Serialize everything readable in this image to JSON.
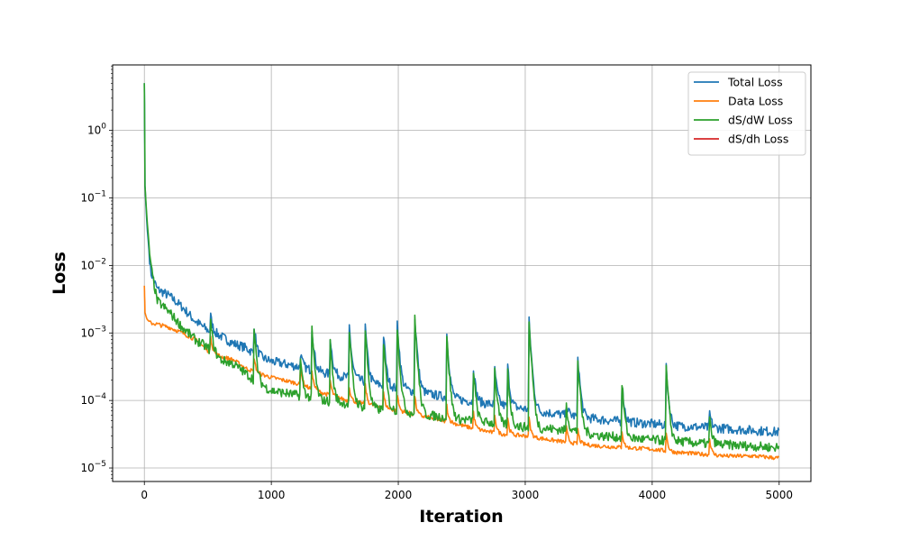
{
  "chart_data": {
    "type": "line",
    "title": "",
    "xlabel": "Iteration",
    "ylabel": "Loss",
    "xlim": [
      -250,
      5250
    ],
    "ylim_log10": [
      -5.2,
      0.97
    ],
    "yscale": "log",
    "grid": true,
    "legend_position": "top-right",
    "xticks": [
      0,
      1000,
      2000,
      3000,
      4000,
      5000
    ],
    "xtick_labels": [
      "0",
      "1000",
      "2000",
      "3000",
      "4000",
      "5000"
    ],
    "yticks_exponent": [
      0,
      -1,
      -2,
      -3,
      -4,
      -5
    ],
    "series": [
      {
        "name": "Total Loss",
        "color": "#1f77b4",
        "x": [
          0,
          5,
          20,
          50,
          100,
          200,
          300,
          400,
          500,
          600,
          700,
          800,
          900,
          1000,
          1200,
          1400,
          1600,
          1800,
          2000,
          2200,
          2400,
          2600,
          2800,
          3000,
          3200,
          3400,
          3600,
          3800,
          4000,
          4200,
          4400,
          4600,
          4800,
          5000
        ],
        "y": [
          5.0,
          0.15,
          0.04,
          0.008,
          0.0045,
          0.0035,
          0.0024,
          0.0015,
          0.0011,
          0.0009,
          0.0007,
          0.0006,
          0.00045,
          0.00038,
          0.00032,
          0.00026,
          0.00022,
          0.00018,
          0.00015,
          0.00013,
          0.00011,
          9.5e-05,
          8.5e-05,
          7.5e-05,
          6.5e-05,
          5.8e-05,
          5.2e-05,
          4.8e-05,
          4.5e-05,
          4.2e-05,
          4e-05,
          3.8e-05,
          3.6e-05,
          3.4e-05
        ]
      },
      {
        "name": "Data Loss",
        "color": "#ff7f0e",
        "x": [
          0,
          5,
          20,
          50,
          100,
          200,
          300,
          400,
          500,
          600,
          700,
          800,
          900,
          1000,
          1200,
          1400,
          1600,
          1800,
          2000,
          2200,
          2400,
          2600,
          2800,
          3000,
          3200,
          3400,
          3600,
          3800,
          4000,
          4200,
          4400,
          4600,
          4800,
          5000
        ],
        "y": [
          0.005,
          0.002,
          0.0016,
          0.0014,
          0.00135,
          0.0012,
          0.001,
          0.0008,
          0.00055,
          0.00045,
          0.0004,
          0.0003,
          0.00025,
          0.00022,
          0.00018,
          0.00013,
          0.0001,
          8.5e-05,
          7e-05,
          5.8e-05,
          4.8e-05,
          3.8e-05,
          3.2e-05,
          3e-05,
          2.6e-05,
          2.3e-05,
          2.1e-05,
          2e-05,
          1.9e-05,
          1.7e-05,
          1.6e-05,
          1.5e-05,
          1.5e-05,
          1.4e-05
        ]
      },
      {
        "name": "dS/dW Loss",
        "color": "#2ca02c",
        "x": [
          0,
          5,
          20,
          50,
          100,
          200,
          300,
          400,
          500,
          600,
          700,
          800,
          900,
          1000,
          1200,
          1400,
          1600,
          1800,
          2000,
          2200,
          2400,
          2600,
          2800,
          3000,
          3200,
          3400,
          3600,
          3800,
          4000,
          4200,
          4400,
          4600,
          4800,
          5000
        ],
        "y": [
          5.0,
          0.15,
          0.05,
          0.01,
          0.003,
          0.002,
          0.0012,
          0.0008,
          0.0006,
          0.0004,
          0.00035,
          0.00025,
          0.00018,
          0.00014,
          0.00012,
          0.0001,
          9e-05,
          7.5e-05,
          7e-05,
          6.2e-05,
          5.5e-05,
          5e-05,
          4.5e-05,
          4e-05,
          3.8e-05,
          3.5e-05,
          3e-05,
          2.8e-05,
          2.6e-05,
          2.5e-05,
          2.3e-05,
          2.2e-05,
          2.1e-05,
          2e-05
        ]
      },
      {
        "name": "dS/dh Loss",
        "color": "#d62728",
        "x": [],
        "y": []
      }
    ],
    "spikes": [
      {
        "x": 520,
        "total": 0.0019,
        "dsdw": 0.0016
      },
      {
        "x": 860,
        "total": 0.0016,
        "dsdw": 0.0014
      },
      {
        "x": 1230,
        "total": 0.0005,
        "dsdw": 0.0004
      },
      {
        "x": 1320,
        "total": 0.0012,
        "dsdw": 0.0011
      },
      {
        "x": 1460,
        "total": 0.0011,
        "dsdw": 0.0009
      },
      {
        "x": 1610,
        "total": 0.0016,
        "dsdw": 0.0014
      },
      {
        "x": 1740,
        "total": 0.0012,
        "dsdw": 0.0011
      },
      {
        "x": 1880,
        "total": 0.0012,
        "dsdw": 0.001
      },
      {
        "x": 1990,
        "total": 0.0016,
        "dsdw": 0.0014
      },
      {
        "x": 2130,
        "total": 0.0017,
        "dsdw": 0.0016
      },
      {
        "x": 2380,
        "total": 0.0011,
        "dsdw": 0.001
      },
      {
        "x": 2590,
        "total": 0.00035,
        "dsdw": 0.00032
      },
      {
        "x": 2760,
        "total": 0.0003,
        "dsdw": 0.00028
      },
      {
        "x": 2860,
        "total": 0.00035,
        "dsdw": 0.0003
      },
      {
        "x": 3030,
        "total": 0.0015,
        "dsdw": 0.0014
      },
      {
        "x": 3320,
        "total": 0.0001,
        "dsdw": 0.0001
      },
      {
        "x": 3410,
        "total": 0.0006,
        "dsdw": 0.0005
      },
      {
        "x": 3760,
        "total": 0.0002,
        "dsdw": 0.0002
      },
      {
        "x": 4110,
        "total": 0.0003,
        "dsdw": 0.0003
      },
      {
        "x": 4450,
        "total": 7e-05,
        "dsdw": 6e-05
      }
    ]
  }
}
